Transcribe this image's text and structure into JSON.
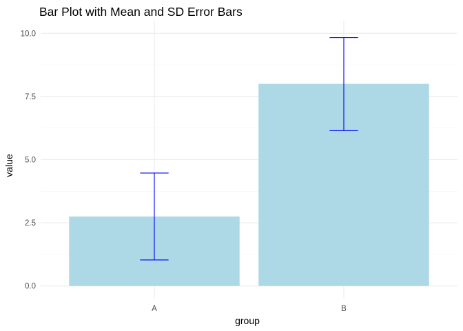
{
  "chart_data": {
    "type": "bar",
    "title": "Bar Plot with Mean and SD Error Bars",
    "xlabel": "group",
    "ylabel": "value",
    "categories": [
      "A",
      "B"
    ],
    "values": [
      2.75,
      8.0
    ],
    "error_low": [
      1.03,
      6.15
    ],
    "error_high": [
      4.47,
      9.83
    ],
    "ylim": [
      -0.5,
      10.5
    ],
    "yticks": [
      0.0,
      2.5,
      5.0,
      7.5,
      10.0
    ],
    "ytick_labels": [
      "0.0",
      "2.5",
      "5.0",
      "7.5",
      "10.0"
    ],
    "grid": true,
    "legend": "none",
    "bar_color": "#add8e6",
    "error_color": "#0000ff"
  }
}
